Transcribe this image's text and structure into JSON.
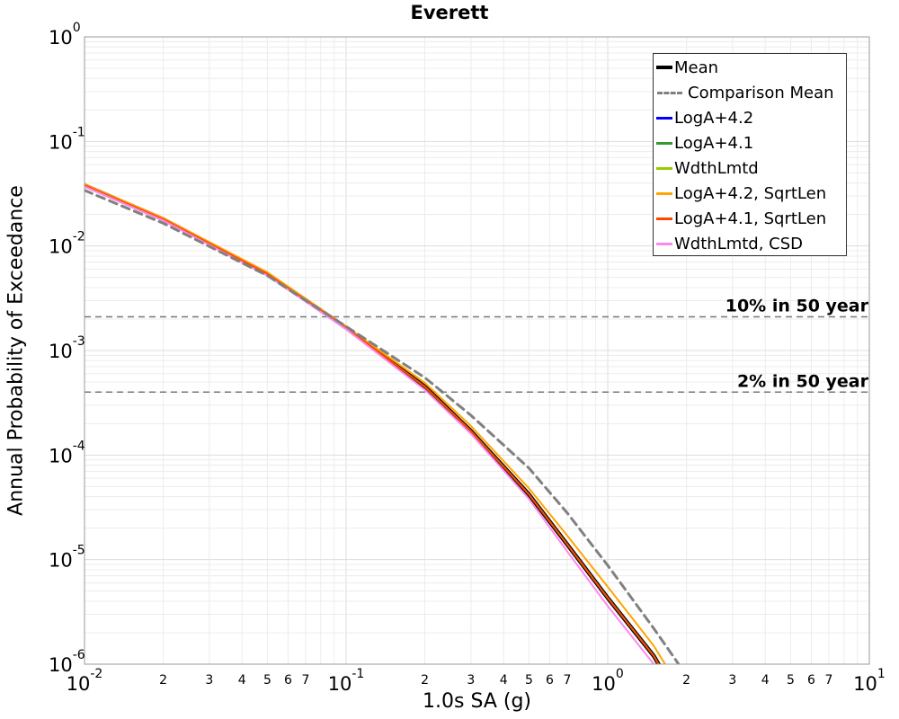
{
  "chart_data": {
    "type": "line",
    "title": "Everett",
    "xlabel": "1.0s SA (g)",
    "ylabel": "Annual Probability of Exceedance",
    "xscale": "log",
    "yscale": "log",
    "xlim": [
      0.01,
      10
    ],
    "ylim": [
      1e-06,
      1
    ],
    "grid": true,
    "legend_position": "top-right",
    "x_tick_labels": [
      {
        "value": 0.01,
        "base": "10",
        "exp": "-2"
      },
      {
        "value": 0.1,
        "base": "10",
        "exp": "-1"
      },
      {
        "value": 1,
        "base": "10",
        "exp": "0"
      },
      {
        "value": 10,
        "base": "10",
        "exp": "1"
      }
    ],
    "x_minor_tick_labels": [
      "2",
      "3",
      "4",
      "5",
      "6",
      "7"
    ],
    "y_tick_labels": [
      {
        "value": 1,
        "base": "10",
        "exp": "0"
      },
      {
        "value": 0.1,
        "base": "10",
        "exp": "-1"
      },
      {
        "value": 0.01,
        "base": "10",
        "exp": "-2"
      },
      {
        "value": 0.001,
        "base": "10",
        "exp": "-3"
      },
      {
        "value": 0.0001,
        "base": "10",
        "exp": "-4"
      },
      {
        "value": 1e-05,
        "base": "10",
        "exp": "-5"
      },
      {
        "value": 1e-06,
        "base": "10",
        "exp": "-6"
      }
    ],
    "reference_lines": [
      {
        "label": "10% in 50 year",
        "y": 0.0021
      },
      {
        "label": "2% in 50 year",
        "y": 0.0004
      }
    ],
    "x": [
      0.01,
      0.02,
      0.05,
      0.1,
      0.2,
      0.3,
      0.5,
      0.7,
      1.0,
      1.5,
      1.7,
      2.0
    ],
    "series": [
      {
        "name": "Mean",
        "color": "#000000",
        "dash": "solid",
        "width": 4.5,
        "values": [
          0.038,
          0.018,
          0.0054,
          0.00165,
          0.00045,
          0.00017,
          4.2e-05,
          1.4e-05,
          4.3e-06,
          1.2e-06,
          7e-07,
          null
        ]
      },
      {
        "name": "Comparison Mean",
        "color": "#808080",
        "dash": "dashed",
        "width": 3,
        "values": [
          0.034,
          0.0165,
          0.0052,
          0.0017,
          0.00055,
          0.00024,
          7.5e-05,
          2.8e-05,
          8.8e-06,
          2.2e-06,
          1.4e-06,
          7.8e-07
        ]
      },
      {
        "name": "LogA+4.2",
        "color": "#0000ff",
        "dash": "solid",
        "width": 2,
        "values": [
          0.038,
          0.018,
          0.0054,
          0.00165,
          0.00045,
          0.00017,
          4.2e-05,
          1.4e-05,
          4.3e-06,
          1.2e-06,
          7e-07,
          null
        ]
      },
      {
        "name": "LogA+4.1",
        "color": "#339933",
        "dash": "solid",
        "width": 2,
        "values": [
          0.038,
          0.018,
          0.0054,
          0.00165,
          0.00045,
          0.00017,
          4.2e-05,
          1.4e-05,
          4.3e-06,
          1.2e-06,
          7e-07,
          null
        ]
      },
      {
        "name": "WdthLmtd",
        "color": "#99cc00",
        "dash": "solid",
        "width": 2,
        "values": [
          0.038,
          0.018,
          0.0054,
          0.00165,
          0.00045,
          0.00017,
          4.2e-05,
          1.4e-05,
          4.3e-06,
          1.2e-06,
          7e-07,
          null
        ]
      },
      {
        "name": "LogA+4.2, SqrtLen",
        "color": "#ffa500",
        "dash": "solid",
        "width": 2,
        "values": [
          0.039,
          0.0185,
          0.0056,
          0.0017,
          0.00049,
          0.00019,
          4.8e-05,
          1.7e-05,
          5.5e-06,
          1.5e-06,
          9e-07,
          null
        ]
      },
      {
        "name": "LogA+4.1, SqrtLen",
        "color": "#ff4500",
        "dash": "solid",
        "width": 2,
        "values": [
          0.038,
          0.018,
          0.0054,
          0.00165,
          0.00045,
          0.00017,
          4.2e-05,
          1.4e-05,
          4.3e-06,
          1.2e-06,
          7e-07,
          null
        ]
      },
      {
        "name": "WdthLmtd, CSD",
        "color": "#ff88ee",
        "dash": "solid",
        "width": 2,
        "values": [
          0.037,
          0.0175,
          0.0052,
          0.0016,
          0.00042,
          0.00016,
          3.8e-05,
          1.2e-05,
          3.6e-06,
          1e-06,
          6e-07,
          null
        ]
      }
    ]
  }
}
